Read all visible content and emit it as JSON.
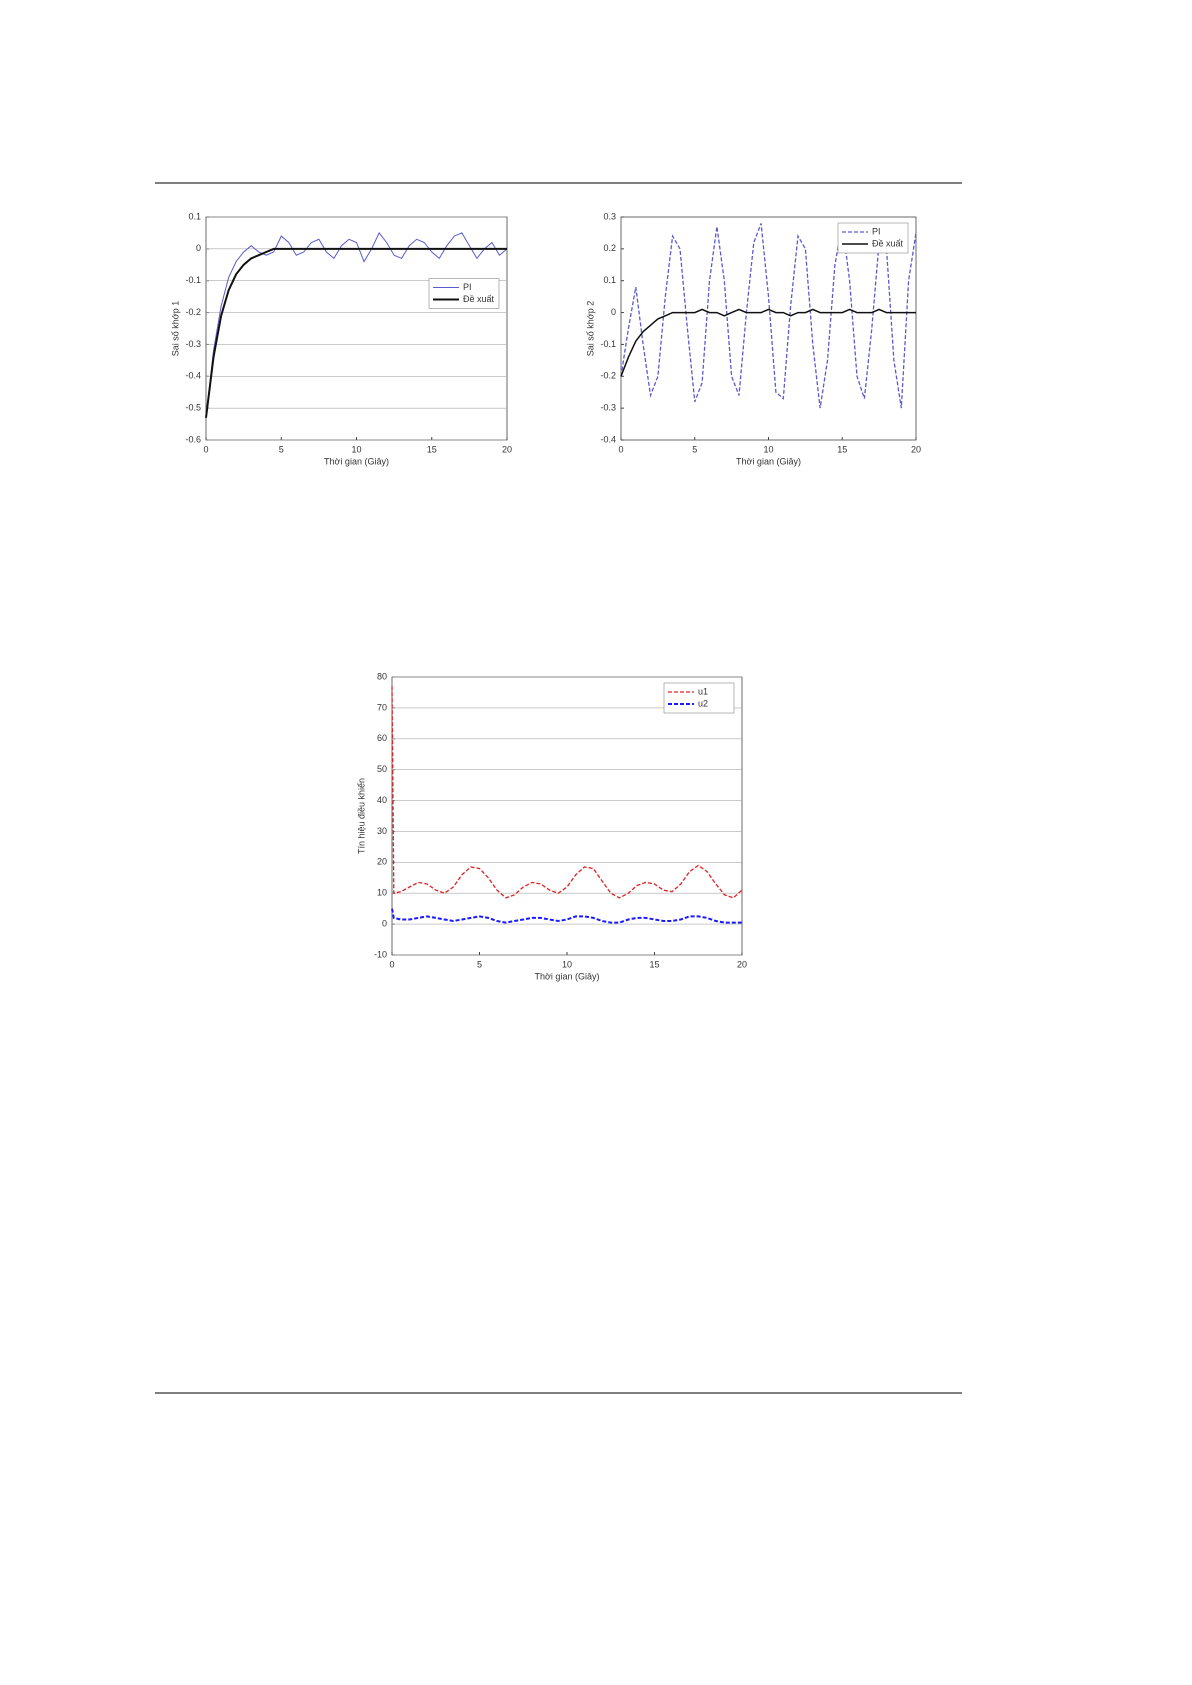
{
  "chart_data": [
    {
      "type": "line",
      "ylabel": "Sai số khớp 1",
      "xlabel": "Thời gian (Giây)",
      "x": [
        0,
        0.5,
        1,
        1.5,
        2,
        2.5,
        3,
        3.5,
        4,
        4.5,
        5,
        5.5,
        6,
        6.5,
        7,
        7.5,
        8,
        8.5,
        9,
        9.5,
        10,
        10.5,
        11,
        11.5,
        12,
        12.5,
        13,
        13.5,
        14,
        14.5,
        15,
        15.5,
        16,
        16.5,
        17,
        17.5,
        18,
        18.5,
        19,
        19.5,
        20
      ],
      "series": [
        {
          "name": "PI",
          "color": "#5a5ad0",
          "width": 1,
          "style": "solid",
          "values": [
            -0.53,
            -0.32,
            -0.18,
            -0.09,
            -0.04,
            -0.01,
            0.01,
            -0.01,
            -0.02,
            -0.01,
            0.04,
            0.02,
            -0.02,
            -0.01,
            0.02,
            0.03,
            -0.01,
            -0.03,
            0.01,
            0.03,
            0.02,
            -0.04,
            0,
            0.05,
            0.02,
            -0.02,
            -0.03,
            0.01,
            0.03,
            0.02,
            -0.01,
            -0.03,
            0.01,
            0.04,
            0.05,
            0.01,
            -0.03,
            0,
            0.02,
            -0.02,
            0
          ]
        },
        {
          "name": "Đề xuất",
          "color": "#111111",
          "width": 2,
          "style": "solid",
          "values": [
            -0.53,
            -0.34,
            -0.21,
            -0.13,
            -0.08,
            -0.05,
            -0.03,
            -0.02,
            -0.01,
            0,
            0,
            0,
            0,
            0,
            0,
            0,
            0,
            0,
            0,
            0,
            0,
            0,
            0,
            0,
            0,
            0,
            0,
            0,
            0,
            0,
            0,
            0,
            0,
            0,
            0,
            0,
            0,
            0,
            0,
            0,
            0
          ]
        }
      ],
      "xlim": [
        0,
        20
      ],
      "xticks": [
        0,
        5,
        10,
        15,
        20
      ],
      "ylim": [
        -0.6,
        0.1
      ],
      "yticks": [
        0.1,
        0,
        -0.1,
        -0.2,
        -0.3,
        -0.4,
        -0.5,
        -0.6
      ],
      "grid": true,
      "legend": "center right"
    },
    {
      "type": "line",
      "ylabel": "Sai số khớp 2",
      "xlabel": "Thời gian (Giây)",
      "x": [
        0,
        0.5,
        1,
        1.5,
        2,
        2.5,
        3,
        3.5,
        4,
        4.5,
        5,
        5.5,
        6,
        6.5,
        7,
        7.5,
        8,
        8.5,
        9,
        9.5,
        10,
        10.5,
        11,
        11.5,
        12,
        12.5,
        13,
        13.5,
        14,
        14.5,
        15,
        15.5,
        16,
        16.5,
        17,
        17.5,
        18,
        18.5,
        19,
        19.5,
        20
      ],
      "series": [
        {
          "name": "PI",
          "color": "#5a5ad0",
          "width": 1.3,
          "style": "dashed",
          "values": [
            -0.2,
            -0.05,
            0.08,
            -0.1,
            -0.26,
            -0.2,
            0.05,
            0.24,
            0.2,
            -0.05,
            -0.28,
            -0.22,
            0.1,
            0.27,
            0.1,
            -0.2,
            -0.26,
            0,
            0.22,
            0.28,
            0.05,
            -0.25,
            -0.27,
            0.02,
            0.24,
            0.2,
            -0.1,
            -0.3,
            -0.15,
            0.15,
            0.28,
            0.1,
            -0.2,
            -0.27,
            -0.05,
            0.22,
            0.2,
            -0.15,
            -0.3,
            0.1,
            0.25
          ]
        },
        {
          "name": "Đề xuất",
          "color": "#111111",
          "width": 1.5,
          "style": "solid",
          "values": [
            -0.2,
            -0.14,
            -0.09,
            -0.06,
            -0.04,
            -0.02,
            -0.01,
            0,
            0,
            0,
            0,
            0.01,
            0,
            0,
            -0.01,
            0,
            0.01,
            0,
            0,
            0,
            0.01,
            0,
            0,
            -0.01,
            0,
            0,
            0.01,
            0,
            0,
            0,
            0,
            0.01,
            0,
            0,
            0,
            0.01,
            0,
            0,
            0,
            0,
            0
          ]
        }
      ],
      "xlim": [
        0,
        20
      ],
      "xticks": [
        0,
        5,
        10,
        15,
        20
      ],
      "ylim": [
        -0.4,
        0.3
      ],
      "yticks": [
        0.3,
        0.2,
        0.1,
        0,
        -0.1,
        -0.2,
        -0.3,
        -0.4
      ],
      "grid": false,
      "legend": "upper right"
    },
    {
      "type": "line",
      "ylabel": "Tín hiệu điều khiển",
      "xlabel": "Thời gian (Giây)",
      "x": [
        0,
        0.1,
        0.5,
        1,
        1.5,
        2,
        2.5,
        3,
        3.5,
        4,
        4.5,
        5,
        5.5,
        6,
        6.5,
        7,
        7.5,
        8,
        8.5,
        9,
        9.5,
        10,
        10.5,
        11,
        11.5,
        12,
        12.5,
        13,
        13.5,
        14,
        14.5,
        15,
        15.5,
        16,
        16.5,
        17,
        17.5,
        18,
        18.5,
        19,
        19.5,
        20
      ],
      "series": [
        {
          "name": "u1",
          "color": "#e02020",
          "width": 1.3,
          "style": "dashed",
          "values": [
            77,
            10,
            10.5,
            12,
            13.5,
            13,
            11,
            10,
            12,
            16,
            18.5,
            18,
            15,
            11,
            8.5,
            9.5,
            12,
            13.5,
            13,
            11,
            10,
            12,
            16,
            18.5,
            18,
            14,
            10,
            8.5,
            10,
            12.5,
            13.5,
            13,
            11,
            10.5,
            13,
            17,
            19,
            17,
            13,
            9.5,
            8.5,
            11
          ]
        },
        {
          "name": "u2",
          "color": "#1a1aff",
          "width": 2,
          "style": "dashed",
          "values": [
            5,
            2,
            1.5,
            1.5,
            2,
            2.5,
            2,
            1.5,
            1,
            1.5,
            2,
            2.5,
            2,
            1,
            0.5,
            1,
            1.5,
            2,
            2,
            1.5,
            1,
            1.5,
            2.5,
            2.5,
            2,
            1,
            0.5,
            0.5,
            1.5,
            2,
            2,
            1.5,
            1,
            1,
            1.5,
            2.5,
            2.5,
            2,
            1,
            0.5,
            0.5,
            0.5
          ]
        }
      ],
      "xlim": [
        0,
        20
      ],
      "xticks": [
        0,
        5,
        10,
        15,
        20
      ],
      "ylim": [
        -10,
        80
      ],
      "yticks": [
        80,
        70,
        60,
        50,
        40,
        30,
        20,
        10,
        0,
        -10
      ],
      "grid": true,
      "legend": "upper right"
    }
  ]
}
